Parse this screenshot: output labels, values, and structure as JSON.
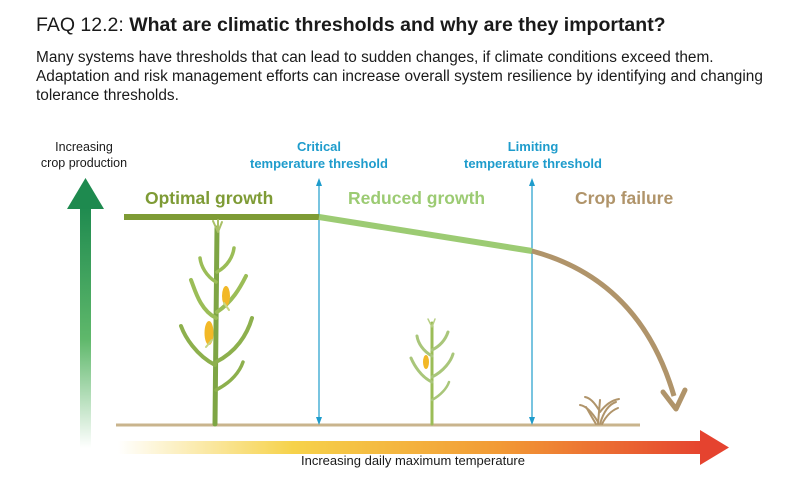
{
  "header": {
    "faq_number": "FAQ 12.2:",
    "question": "What are climatic thresholds and why are they important?",
    "intro": "Many systems have thresholds that can lead to sudden changes, if climate conditions exceed them. Adaptation and risk management efforts can increase overall system resilience by identifying and changing tolerance thresholds."
  },
  "axes": {
    "y_label_line1": "Increasing",
    "y_label_line2": "crop production",
    "x_label": "Increasing daily maximum temperature"
  },
  "thresholds": [
    {
      "line1": "Critical",
      "line2": "temperature threshold"
    },
    {
      "line1": "Limiting",
      "line2": "temperature threshold"
    }
  ],
  "phases": [
    {
      "label": "Optimal growth",
      "color": "#7e9b35"
    },
    {
      "label": "Reduced growth",
      "color": "#9ccb73"
    },
    {
      "label": "Crop failure",
      "color": "#b0946a"
    }
  ],
  "colors": {
    "threshold_line": "#1e9ccc",
    "y_arrow": "#1e8a4f",
    "x_arrow_start": "#f6d24a",
    "x_arrow_end": "#e5432f",
    "ground": "#c9b48d",
    "plant": "#8db04d",
    "cob": "#f2b827"
  },
  "icons": [
    "corn-plant-tall-icon",
    "corn-plant-small-icon",
    "withered-plant-icon"
  ]
}
